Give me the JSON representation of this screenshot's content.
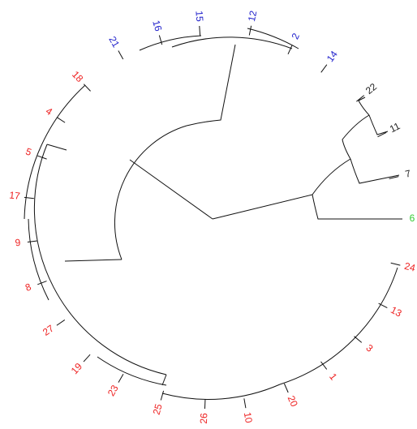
{
  "leaves": [
    {
      "label": "6",
      "color": "#33cc33"
    },
    {
      "label": "7",
      "color": "#222222"
    },
    {
      "label": "11",
      "color": "#222222"
    },
    {
      "label": "22",
      "color": "#222222"
    },
    {
      "label": "14",
      "color": "#2222cc"
    },
    {
      "label": "2",
      "color": "#2222cc"
    },
    {
      "label": "12",
      "color": "#2222cc"
    },
    {
      "label": "15",
      "color": "#2222cc"
    },
    {
      "label": "16",
      "color": "#2222cc"
    },
    {
      "label": "21",
      "color": "#2222cc"
    },
    {
      "label": "18",
      "color": "#ee2222"
    },
    {
      "label": "4",
      "color": "#ee2222"
    },
    {
      "label": "5",
      "color": "#ee2222"
    },
    {
      "label": "17",
      "color": "#ee2222"
    },
    {
      "label": "9",
      "color": "#ee2222"
    },
    {
      "label": "8",
      "color": "#ee2222"
    },
    {
      "label": "27",
      "color": "#ee2222"
    },
    {
      "label": "19",
      "color": "#ee2222"
    },
    {
      "label": "23",
      "color": "#ee2222"
    },
    {
      "label": "25",
      "color": "#ee2222"
    },
    {
      "label": "26",
      "color": "#ee2222"
    },
    {
      "label": "10",
      "color": "#ee2222"
    },
    {
      "label": "20",
      "color": "#ee2222"
    },
    {
      "label": "1",
      "color": "#ee2222"
    },
    {
      "label": "3",
      "color": "#ee2222"
    },
    {
      "label": "13",
      "color": "#ee2222"
    },
    {
      "label": "24",
      "color": "#ee2222"
    }
  ]
}
